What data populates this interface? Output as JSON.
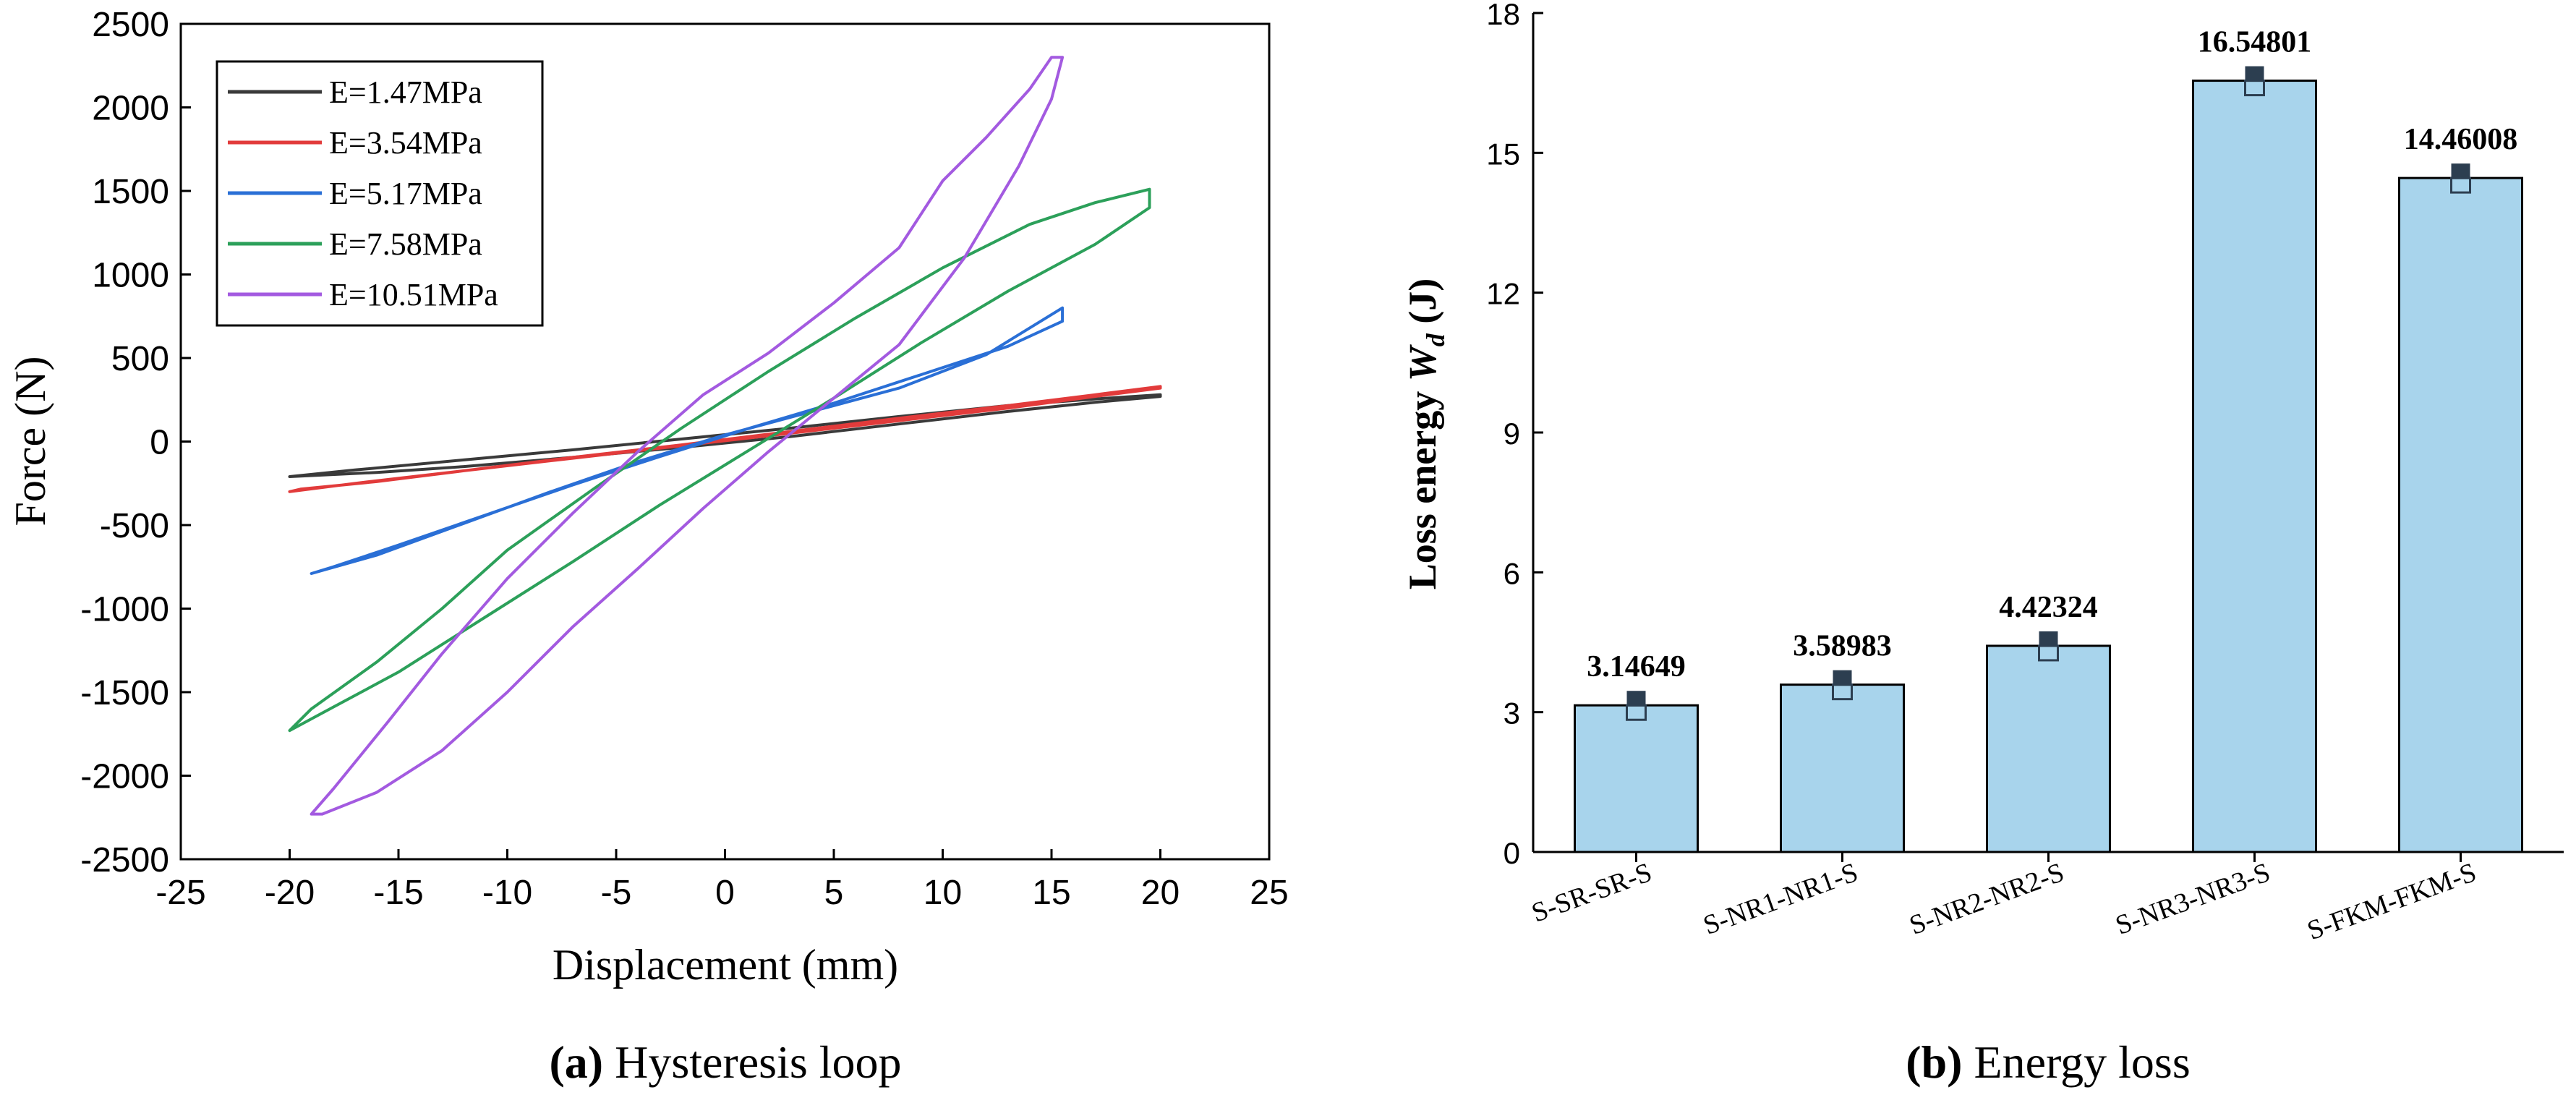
{
  "chart_data": [
    {
      "type": "line",
      "panel": "a",
      "caption_letter": "(a)",
      "caption_text": " Hysteresis loop",
      "xlabel": "Displacement (mm)",
      "ylabel": "Force (N)",
      "xlim": [
        -25,
        25
      ],
      "ylim": [
        -2500,
        2500
      ],
      "xticks": [
        -25,
        -20,
        -15,
        -10,
        -5,
        0,
        5,
        10,
        15,
        20,
        25
      ],
      "yticks": [
        -2500,
        -2000,
        -1500,
        -1000,
        -500,
        0,
        500,
        1000,
        1500,
        2000,
        2500
      ],
      "legend_position": "top-left",
      "series": [
        {
          "name": "E=1.47MPa",
          "color": "#3a3a3a",
          "x": [
            -20,
            -17,
            -12,
            -7,
            -2,
            3,
            8,
            13,
            17,
            20,
            20,
            17,
            13,
            8,
            3,
            -2,
            -7,
            -12,
            -16,
            -20
          ],
          "y": [
            -210,
            -170,
            -110,
            -50,
            15,
            80,
            150,
            215,
            255,
            280,
            270,
            235,
            180,
            105,
            30,
            -35,
            -95,
            -150,
            -185,
            -210
          ]
        },
        {
          "name": "E=3.54MPa",
          "color": "#e23b3b",
          "x": [
            -20,
            -17,
            -12,
            -7,
            -2,
            3,
            8,
            13,
            17,
            20,
            20,
            17,
            13,
            8,
            3,
            -2,
            -7,
            -12,
            -16,
            -19.5,
            -20
          ],
          "y": [
            -300,
            -250,
            -175,
            -95,
            -20,
            60,
            140,
            215,
            280,
            330,
            320,
            270,
            200,
            125,
            50,
            -25,
            -100,
            -175,
            -240,
            -285,
            -300
          ]
        },
        {
          "name": "E=5.17MPa",
          "color": "#2a6fd6",
          "x": [
            -19,
            -16,
            -12,
            -8,
            -4,
            0,
            4,
            8,
            12,
            15.5,
            15.5,
            13,
            9,
            5,
            1,
            -3,
            -7,
            -11,
            -15,
            -18,
            -19
          ],
          "y": [
            -790,
            -680,
            -490,
            -300,
            -120,
            40,
            180,
            320,
            520,
            800,
            720,
            570,
            400,
            230,
            75,
            -90,
            -260,
            -440,
            -620,
            -750,
            -790
          ]
        },
        {
          "name": "E=7.58MPa",
          "color": "#2ca05a",
          "x": [
            -20,
            -19,
            -16,
            -13,
            -10,
            -6,
            -2,
            2,
            6,
            10,
            14,
            17,
            19.5,
            19.5,
            17,
            13,
            9,
            5,
            1,
            -3,
            -7,
            -11,
            -15,
            -18,
            -20
          ],
          "y": [
            -1730,
            -1600,
            -1320,
            -1000,
            -650,
            -280,
            80,
            420,
            740,
            1040,
            1300,
            1430,
            1510,
            1400,
            1180,
            900,
            590,
            260,
            -60,
            -380,
            -720,
            -1050,
            -1380,
            -1590,
            -1730
          ]
        },
        {
          "name": "E=10.51MPa",
          "color": "#a35ae0",
          "x": [
            -19,
            -18,
            -15.5,
            -13,
            -10,
            -7,
            -4,
            -1,
            2,
            5,
            8,
            10,
            12,
            14,
            15,
            15.5,
            15,
            13.5,
            11,
            8,
            5,
            2,
            -1,
            -4,
            -7,
            -10,
            -13,
            -16,
            -18.5,
            -19
          ],
          "y": [
            -2230,
            -2080,
            -1680,
            -1270,
            -820,
            -430,
            -60,
            280,
            530,
            830,
            1160,
            1560,
            1820,
            2110,
            2300,
            2300,
            2050,
            1650,
            1100,
            580,
            260,
            -60,
            -400,
            -760,
            -1110,
            -1500,
            -1850,
            -2100,
            -2230,
            -2230
          ]
        }
      ]
    },
    {
      "type": "bar",
      "panel": "b",
      "caption_letter": "(b)",
      "caption_text": " Energy loss",
      "xlabel": "",
      "ylabel_main": "Loss energy ",
      "ylabel_sym": "W",
      "ylabel_sub": "d",
      "ylabel_unit": " (J)",
      "ylim": [
        0,
        18
      ],
      "yticks": [
        0,
        3,
        6,
        9,
        12,
        15,
        18
      ],
      "categories": [
        "S-SR-SR-S",
        "S-NR1-NR1-S",
        "S-NR2-NR2-S",
        "S-NR3-NR3-S",
        "S-FKM-FKM-S"
      ],
      "values": [
        3.14649,
        3.58983,
        4.42324,
        16.54801,
        14.46008
      ],
      "value_labels": [
        "3.14649",
        "3.58983",
        "4.42324",
        "16.54801",
        "14.46008"
      ],
      "bar_color": "#a8d4ec",
      "marker_color": "#2c3e50"
    }
  ]
}
